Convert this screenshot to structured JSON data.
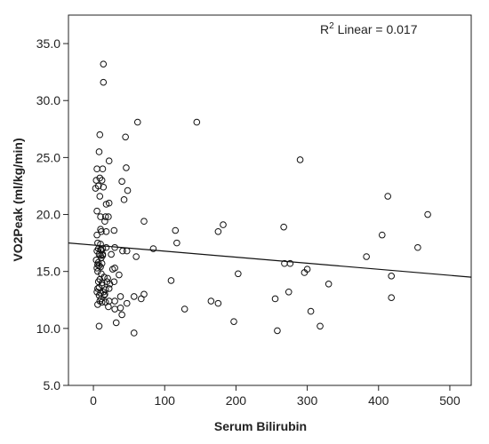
{
  "chart_data": {
    "type": "scatter",
    "title": "",
    "xlabel": "Serum Bilirubin",
    "ylabel": "VO2Peak (ml/kg/min)",
    "xlim": [
      -35,
      530
    ],
    "ylim": [
      5.0,
      37.5
    ],
    "xticks": [
      0,
      100,
      200,
      300,
      400,
      500
    ],
    "xtick_labels": [
      "0",
      "100",
      "200",
      "300",
      "400",
      "500"
    ],
    "yticks": [
      5.0,
      10.0,
      15.0,
      20.0,
      25.0,
      30.0,
      35.0
    ],
    "ytick_labels": [
      "5.0",
      "10.0",
      "15.0",
      "20.0",
      "25.0",
      "30.0",
      "35.0"
    ],
    "grid": false,
    "legend": "none",
    "annotation": {
      "r2_prefix": "R",
      "r2_sup": "2",
      "r2_rest": " Linear = 0.017"
    },
    "fit_line": {
      "x": [
        -35,
        530
      ],
      "y": [
        17.5,
        14.5
      ]
    },
    "points": [
      [
        14,
        33.2
      ],
      [
        14,
        31.6
      ],
      [
        62,
        28.1
      ],
      [
        145,
        28.1
      ],
      [
        9,
        27.0
      ],
      [
        45,
        26.8
      ],
      [
        290,
        24.8
      ],
      [
        8,
        25.5
      ],
      [
        22,
        24.7
      ],
      [
        5,
        24.0
      ],
      [
        13,
        24.0
      ],
      [
        46,
        24.1
      ],
      [
        4,
        23.0
      ],
      [
        9,
        23.2
      ],
      [
        12,
        23.0
      ],
      [
        7,
        22.5
      ],
      [
        3,
        22.3
      ],
      [
        14,
        22.4
      ],
      [
        40,
        22.9
      ],
      [
        48,
        22.1
      ],
      [
        9,
        21.6
      ],
      [
        18,
        20.9
      ],
      [
        22,
        21.0
      ],
      [
        413,
        21.6
      ],
      [
        43,
        21.3
      ],
      [
        5,
        20.3
      ],
      [
        10,
        19.8
      ],
      [
        17,
        19.8
      ],
      [
        21,
        19.8
      ],
      [
        16,
        19.4
      ],
      [
        71,
        19.4
      ],
      [
        182,
        19.1
      ],
      [
        469,
        20.0
      ],
      [
        267,
        18.9
      ],
      [
        10,
        18.7
      ],
      [
        18,
        18.5
      ],
      [
        11,
        18.5
      ],
      [
        29,
        18.6
      ],
      [
        115,
        18.6
      ],
      [
        175,
        18.5
      ],
      [
        405,
        18.2
      ],
      [
        5,
        18.2
      ],
      [
        6,
        17.5
      ],
      [
        10,
        17.4
      ],
      [
        18,
        17.1
      ],
      [
        7,
        17.0
      ],
      [
        11,
        16.9
      ],
      [
        13,
        17.0
      ],
      [
        30,
        17.1
      ],
      [
        41,
        16.8
      ],
      [
        84,
        17.0
      ],
      [
        117,
        17.5
      ],
      [
        455,
        17.1
      ],
      [
        5,
        16.8
      ],
      [
        8,
        16.5
      ],
      [
        10,
        16.4
      ],
      [
        11,
        16.2
      ],
      [
        13,
        16.4
      ],
      [
        25,
        16.5
      ],
      [
        47,
        16.8
      ],
      [
        60,
        16.3
      ],
      [
        383,
        16.3
      ],
      [
        4,
        16.0
      ],
      [
        7,
        15.8
      ],
      [
        8,
        15.5
      ],
      [
        12,
        15.7
      ],
      [
        5,
        15.3
      ],
      [
        10,
        15.4
      ],
      [
        30,
        15.3
      ],
      [
        268,
        15.7
      ],
      [
        276,
        15.7
      ],
      [
        300,
        15.2
      ],
      [
        6,
        15.0
      ],
      [
        11,
        14.8
      ],
      [
        15,
        14.5
      ],
      [
        20,
        14.4
      ],
      [
        36,
        14.7
      ],
      [
        203,
        14.8
      ],
      [
        296,
        14.9
      ],
      [
        418,
        14.6
      ],
      [
        7,
        14.1
      ],
      [
        12,
        14.0
      ],
      [
        23,
        13.9
      ],
      [
        29,
        14.1
      ],
      [
        109,
        14.2
      ],
      [
        330,
        13.9
      ],
      [
        6,
        13.5
      ],
      [
        10,
        13.1
      ],
      [
        14,
        13.2
      ],
      [
        17,
        13.4
      ],
      [
        22,
        13.5
      ],
      [
        5,
        13.2
      ],
      [
        8,
        12.9
      ],
      [
        38,
        12.8
      ],
      [
        71,
        13.0
      ],
      [
        274,
        13.2
      ],
      [
        11,
        12.6
      ],
      [
        12,
        12.3
      ],
      [
        17,
        12.3
      ],
      [
        22,
        12.4
      ],
      [
        30,
        12.4
      ],
      [
        47,
        12.2
      ],
      [
        57,
        12.8
      ],
      [
        67,
        12.6
      ],
      [
        165,
        12.4
      ],
      [
        175,
        12.2
      ],
      [
        255,
        12.6
      ],
      [
        418,
        12.7
      ],
      [
        6,
        12.1
      ],
      [
        21,
        11.9
      ],
      [
        30,
        11.7
      ],
      [
        38,
        11.8
      ],
      [
        128,
        11.7
      ],
      [
        305,
        11.5
      ],
      [
        40,
        11.2
      ],
      [
        32,
        10.5
      ],
      [
        8,
        10.2
      ],
      [
        197,
        10.6
      ],
      [
        318,
        10.2
      ],
      [
        57,
        9.6
      ],
      [
        258,
        9.8
      ],
      [
        10,
        16.9
      ],
      [
        13,
        16.5
      ],
      [
        6,
        15.6
      ],
      [
        9,
        14.3
      ],
      [
        12,
        13.8
      ],
      [
        8,
        13.6
      ],
      [
        15,
        12.9
      ],
      [
        9,
        12.4
      ],
      [
        27,
        15.2
      ],
      [
        19,
        14.1
      ],
      [
        16,
        13.0
      ]
    ]
  }
}
